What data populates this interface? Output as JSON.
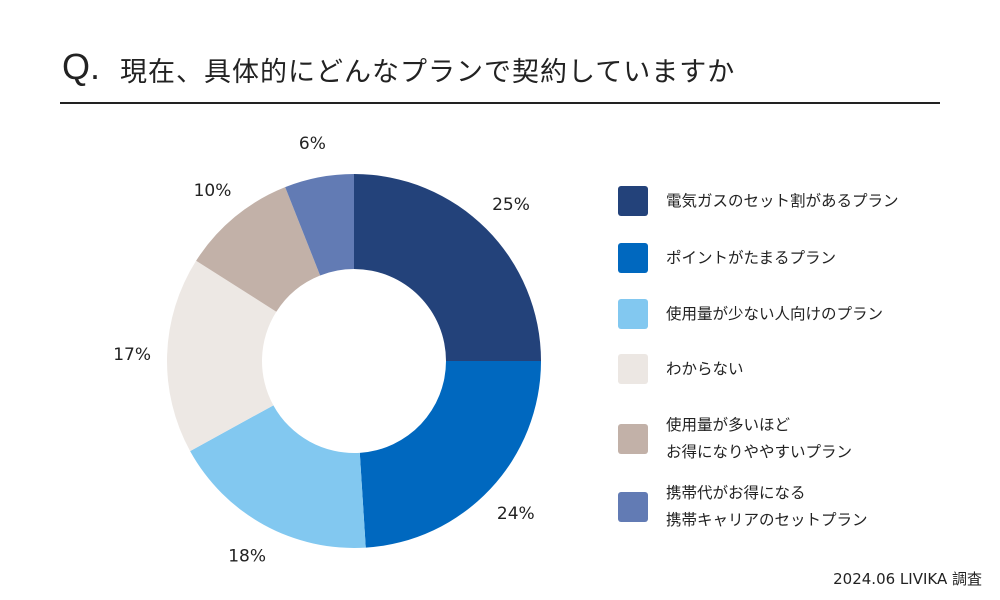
{
  "header": {
    "q_mark": "Q.",
    "question": "現在、具体的にどんなプランで契約していますか"
  },
  "chart_data": {
    "type": "pie",
    "donut": true,
    "categories": [
      "電気ガスのセット割があるプラン",
      "ポイントがたまるプラン",
      "使用量が少ない人向けのプラン",
      "わからない",
      "使用量が多いほど\nお得になりややすいプラン",
      "携帯代がお得になる\n携帯キャリアのセットプラン"
    ],
    "values": [
      25,
      24,
      18,
      17,
      10,
      6
    ],
    "labels": [
      "25%",
      "24%",
      "18%",
      "17%",
      "10%",
      "6%"
    ],
    "colors": [
      "#23427a",
      "#0068bf",
      "#82c8f0",
      "#ede8e4",
      "#c2b1a8",
      "#627bb4"
    ],
    "legend_position": "right"
  },
  "source": "2024.06 LIVIKA 調査"
}
